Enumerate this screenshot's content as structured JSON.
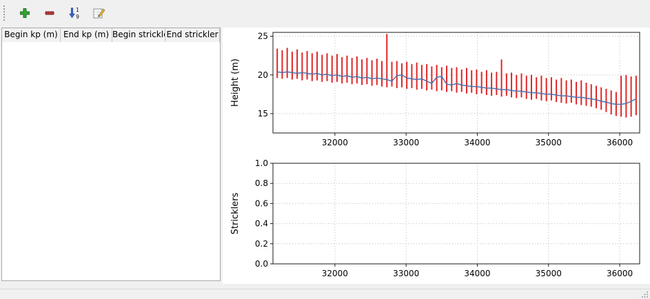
{
  "window": {
    "bg": "#f0f0f0"
  },
  "toolbar": {
    "buttons": [
      {
        "name": "add",
        "icon": "plus-icon",
        "color": "#35a335"
      },
      {
        "name": "remove",
        "icon": "minus-icon",
        "color": "#b23a3a"
      },
      {
        "name": "sort",
        "icon": "sort-ascending-icon",
        "color": "#3b62c4"
      },
      {
        "name": "edit",
        "icon": "edit-pencil-icon",
        "color": "#e8b33c"
      }
    ]
  },
  "table": {
    "headers": [
      "Begin kp (m)",
      "End kp (m)",
      "Begin strickler",
      "End strickler"
    ],
    "rows": []
  },
  "chart_data": [
    {
      "name": "height-profile",
      "type": "bar",
      "title": "",
      "xlabel": "",
      "ylabel": "Height (m)",
      "xlim": [
        31130,
        36280
      ],
      "ylim": [
        12.5,
        25.5
      ],
      "xticks": [
        32000,
        33000,
        34000,
        35000,
        36000
      ],
      "xtick_labels": [
        "32000",
        "33000",
        "34000",
        "35000",
        "36000"
      ],
      "yticks": [
        15,
        20,
        25
      ],
      "ytick_labels": [
        "15",
        "20",
        "25"
      ],
      "grid": true,
      "legend": "none",
      "bar_color": "#e02525",
      "line_color": "#4a72b0",
      "x_start": 31190,
      "x_step": 70,
      "bars_top": [
        23.4,
        23.2,
        23.5,
        23.0,
        23.3,
        22.9,
        23.1,
        22.8,
        23.0,
        22.6,
        22.8,
        22.5,
        22.7,
        22.3,
        22.5,
        22.2,
        22.4,
        22.0,
        22.2,
        21.9,
        22.1,
        21.8,
        25.3,
        21.7,
        21.8,
        21.5,
        21.7,
        21.4,
        21.6,
        21.3,
        21.4,
        21.1,
        21.3,
        21.0,
        21.2,
        20.9,
        21.0,
        20.7,
        20.9,
        20.6,
        20.7,
        20.4,
        20.6,
        20.3,
        20.4,
        22.0,
        20.2,
        20.3,
        20.0,
        20.2,
        19.9,
        20.0,
        19.7,
        19.9,
        19.6,
        19.7,
        19.4,
        19.6,
        19.3,
        19.4,
        19.1,
        19.3,
        19.0,
        18.8,
        18.6,
        18.4,
        18.2,
        18.0,
        17.8,
        19.9,
        20.0,
        19.8,
        19.9
      ],
      "bars_bottom": [
        19.6,
        19.5,
        19.6,
        19.4,
        19.5,
        19.3,
        19.4,
        19.2,
        19.3,
        19.1,
        19.2,
        19.0,
        19.1,
        18.9,
        19.0,
        18.8,
        18.9,
        18.7,
        18.8,
        18.6,
        18.7,
        18.5,
        18.4,
        18.5,
        18.3,
        18.4,
        18.2,
        18.3,
        18.1,
        18.2,
        18.0,
        18.1,
        17.9,
        18.0,
        17.8,
        17.9,
        17.7,
        17.8,
        17.6,
        17.7,
        17.5,
        17.6,
        17.4,
        17.3,
        17.4,
        17.2,
        17.3,
        17.1,
        17.0,
        17.1,
        16.9,
        16.8,
        16.9,
        16.7,
        16.6,
        16.7,
        16.5,
        16.4,
        16.3,
        16.4,
        16.2,
        16.1,
        16.0,
        15.9,
        15.7,
        15.5,
        15.2,
        14.9,
        14.7,
        14.6,
        14.5,
        14.6,
        14.8
      ],
      "line_values": [
        20.4,
        20.3,
        20.4,
        20.3,
        20.2,
        20.3,
        20.2,
        20.1,
        20.2,
        20.0,
        20.1,
        19.9,
        20.0,
        19.8,
        19.9,
        19.7,
        19.8,
        19.6,
        19.7,
        19.5,
        19.6,
        19.5,
        19.4,
        19.2,
        19.9,
        20.0,
        19.6,
        19.5,
        19.4,
        19.5,
        19.2,
        18.9,
        19.7,
        19.8,
        18.8,
        18.7,
        18.9,
        18.7,
        18.6,
        18.5,
        18.5,
        18.4,
        18.3,
        18.3,
        18.2,
        18.1,
        18.1,
        18.0,
        17.9,
        17.9,
        17.8,
        17.7,
        17.7,
        17.6,
        17.5,
        17.5,
        17.4,
        17.3,
        17.3,
        17.2,
        17.1,
        17.1,
        17.0,
        16.9,
        16.8,
        16.6,
        16.5,
        16.3,
        16.2,
        16.2,
        16.3,
        16.6,
        16.9
      ]
    },
    {
      "name": "stricklers",
      "type": "line",
      "title": "",
      "xlabel": "",
      "ylabel": "Stricklers",
      "xlim": [
        31130,
        36280
      ],
      "ylim": [
        0,
        1
      ],
      "xticks": [
        32000,
        33000,
        34000,
        35000,
        36000
      ],
      "xtick_labels": [
        "32000",
        "33000",
        "34000",
        "35000",
        "36000"
      ],
      "yticks": [
        0,
        0.2,
        0.4,
        0.6,
        0.8,
        1.0
      ],
      "ytick_labels": [
        "0.0",
        "0.2",
        "0.4",
        "0.6",
        "0.8",
        "1.0"
      ],
      "grid": true,
      "legend": "none",
      "series": []
    }
  ],
  "colors": {
    "grid": "#bbbbbb",
    "frame": "#1a1a1a",
    "panel_bg": "#f0f0f0",
    "chart_bg": "#ffffff"
  }
}
